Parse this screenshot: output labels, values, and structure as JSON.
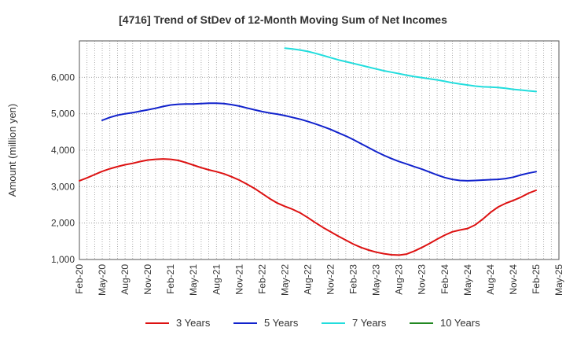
{
  "chart_data": {
    "type": "line",
    "title": "[4716]  Trend of StDev of 12-Month Moving Sum of Net Incomes",
    "xlabel": "",
    "ylabel": "Amount (million yen)",
    "ylim": [
      1000,
      7000
    ],
    "yticks": [
      1000,
      2000,
      3000,
      4000,
      5000,
      6000
    ],
    "ytick_labels": [
      "1,000",
      "2,000",
      "3,000",
      "4,000",
      "5,000",
      "6,000"
    ],
    "x_ticks": [
      "Feb-20",
      "May-20",
      "Aug-20",
      "Nov-20",
      "Feb-21",
      "May-21",
      "Aug-21",
      "Nov-21",
      "Feb-22",
      "May-22",
      "Aug-22",
      "Nov-22",
      "Feb-23",
      "May-23",
      "Aug-23",
      "Nov-23",
      "Feb-24",
      "May-24",
      "Aug-24",
      "Nov-24",
      "Feb-25",
      "May-25"
    ],
    "grid": true,
    "legend_position": "bottom",
    "series": [
      {
        "name": "3 Years",
        "color": "#dd1111",
        "x": [
          "Feb-20",
          "Mar-20",
          "Apr-20",
          "May-20",
          "Jun-20",
          "Jul-20",
          "Aug-20",
          "Sep-20",
          "Oct-20",
          "Nov-20",
          "Dec-20",
          "Jan-21",
          "Feb-21",
          "Mar-21",
          "Apr-21",
          "May-21",
          "Jun-21",
          "Jul-21",
          "Aug-21",
          "Sep-21",
          "Oct-21",
          "Nov-21",
          "Dec-21",
          "Jan-22",
          "Feb-22",
          "Mar-22",
          "Apr-22",
          "May-22",
          "Jun-22",
          "Jul-22",
          "Aug-22",
          "Sep-22",
          "Oct-22",
          "Nov-22",
          "Dec-22",
          "Jan-23",
          "Feb-23",
          "Mar-23",
          "Apr-23",
          "May-23",
          "Jun-23",
          "Jul-23",
          "Aug-23",
          "Sep-23",
          "Oct-23",
          "Nov-23",
          "Dec-23",
          "Jan-24",
          "Feb-24",
          "Mar-24",
          "Apr-24",
          "May-24",
          "Jun-24",
          "Jul-24",
          "Aug-24",
          "Sep-24",
          "Oct-24",
          "Nov-24",
          "Dec-24",
          "Jan-25",
          "Feb-25"
        ],
        "values": [
          3160,
          3240,
          3330,
          3420,
          3490,
          3550,
          3600,
          3640,
          3690,
          3730,
          3750,
          3760,
          3750,
          3720,
          3660,
          3590,
          3520,
          3460,
          3410,
          3350,
          3270,
          3180,
          3070,
          2950,
          2810,
          2670,
          2550,
          2460,
          2380,
          2280,
          2150,
          2010,
          1880,
          1760,
          1640,
          1530,
          1420,
          1330,
          1260,
          1200,
          1160,
          1130,
          1120,
          1150,
          1230,
          1330,
          1440,
          1560,
          1670,
          1760,
          1810,
          1850,
          1950,
          2110,
          2290,
          2440,
          2540,
          2620,
          2710,
          2820,
          2900
        ]
      },
      {
        "name": "5 Years",
        "color": "#1122cc",
        "x": [
          "May-20",
          "Jun-20",
          "Jul-20",
          "Aug-20",
          "Sep-20",
          "Oct-20",
          "Nov-20",
          "Dec-20",
          "Jan-21",
          "Feb-21",
          "Mar-21",
          "Apr-21",
          "May-21",
          "Jun-21",
          "Jul-21",
          "Aug-21",
          "Sep-21",
          "Oct-21",
          "Nov-21",
          "Dec-21",
          "Jan-22",
          "Feb-22",
          "Mar-22",
          "Apr-22",
          "May-22",
          "Jun-22",
          "Jul-22",
          "Aug-22",
          "Sep-22",
          "Oct-22",
          "Nov-22",
          "Dec-22",
          "Jan-23",
          "Feb-23",
          "Mar-23",
          "Apr-23",
          "May-23",
          "Jun-23",
          "Jul-23",
          "Aug-23",
          "Sep-23",
          "Oct-23",
          "Nov-23",
          "Dec-23",
          "Jan-24",
          "Feb-24",
          "Mar-24",
          "Apr-24",
          "May-24",
          "Jun-24",
          "Jul-24",
          "Aug-24",
          "Sep-24",
          "Oct-24",
          "Nov-24",
          "Dec-24",
          "Jan-25",
          "Feb-25"
        ],
        "values": [
          4820,
          4900,
          4960,
          5000,
          5030,
          5070,
          5110,
          5150,
          5200,
          5240,
          5260,
          5270,
          5270,
          5280,
          5290,
          5290,
          5280,
          5250,
          5210,
          5160,
          5110,
          5060,
          5020,
          4990,
          4950,
          4900,
          4850,
          4790,
          4720,
          4650,
          4570,
          4480,
          4390,
          4290,
          4180,
          4070,
          3960,
          3860,
          3770,
          3690,
          3620,
          3550,
          3480,
          3400,
          3320,
          3250,
          3200,
          3170,
          3160,
          3170,
          3180,
          3190,
          3200,
          3220,
          3260,
          3320,
          3370,
          3410
        ]
      },
      {
        "name": "7 Years",
        "color": "#22dddd",
        "x": [
          "May-22",
          "Jun-22",
          "Jul-22",
          "Aug-22",
          "Sep-22",
          "Oct-22",
          "Nov-22",
          "Dec-22",
          "Jan-23",
          "Feb-23",
          "Mar-23",
          "Apr-23",
          "May-23",
          "Jun-23",
          "Jul-23",
          "Aug-23",
          "Sep-23",
          "Oct-23",
          "Nov-23",
          "Dec-23",
          "Jan-24",
          "Feb-24",
          "Mar-24",
          "Apr-24",
          "May-24",
          "Jun-24",
          "Jul-24",
          "Aug-24",
          "Sep-24",
          "Oct-24",
          "Nov-24",
          "Dec-24",
          "Jan-25",
          "Feb-25"
        ],
        "values": [
          6800,
          6780,
          6750,
          6710,
          6660,
          6600,
          6540,
          6480,
          6430,
          6380,
          6330,
          6280,
          6230,
          6180,
          6140,
          6100,
          6060,
          6020,
          5990,
          5960,
          5930,
          5890,
          5850,
          5820,
          5790,
          5760,
          5740,
          5730,
          5720,
          5700,
          5670,
          5650,
          5630,
          5610
        ]
      },
      {
        "name": "10 Years",
        "color": "#228822",
        "x": [],
        "values": []
      }
    ]
  }
}
